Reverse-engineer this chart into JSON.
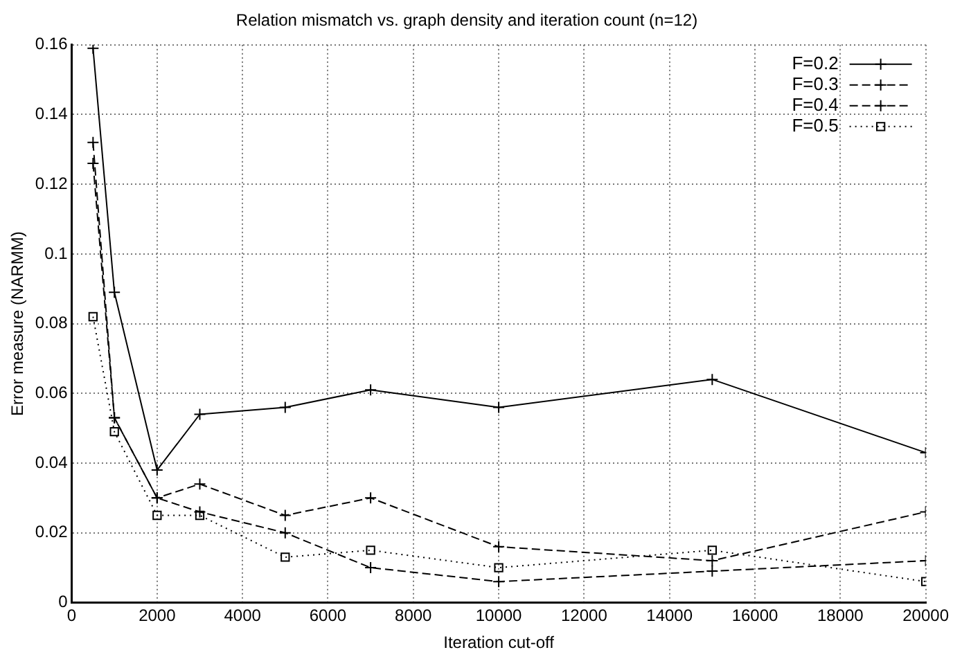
{
  "chart_data": {
    "type": "line",
    "title": "Relation mismatch vs. graph density and iteration count (n=12)",
    "xlabel": "Iteration cut-off",
    "ylabel": "Error measure (NARMM)",
    "x": [
      500,
      1000,
      2000,
      3000,
      5000,
      7000,
      10000,
      15000,
      20000
    ],
    "series": [
      {
        "name": "F=0.2",
        "color": "#000000",
        "marker": "cross",
        "line_style": "solid",
        "values": [
          0.159,
          0.089,
          0.038,
          0.054,
          0.056,
          0.061,
          0.056,
          0.064,
          0.043
        ]
      },
      {
        "name": "F=0.3",
        "color": "#000000",
        "marker": "cross",
        "line_style": "dashed",
        "values": [
          0.132,
          0.053,
          0.03,
          0.034,
          0.025,
          0.03,
          0.016,
          0.012,
          0.026
        ]
      },
      {
        "name": "F=0.4",
        "color": "#000000",
        "marker": "cross",
        "line_style": "dashed",
        "values": [
          0.126,
          0.053,
          0.03,
          0.026,
          0.02,
          0.01,
          0.006,
          0.009,
          0.012
        ]
      },
      {
        "name": "F=0.5",
        "color": "#000000",
        "marker": "square",
        "line_style": "dotted",
        "values": [
          0.082,
          0.049,
          0.025,
          0.025,
          0.013,
          0.015,
          0.01,
          0.015,
          0.006
        ]
      }
    ],
    "xlim": [
      0,
      20000
    ],
    "xticks": [
      0,
      2000,
      4000,
      6000,
      8000,
      10000,
      12000,
      14000,
      16000,
      18000,
      20000
    ],
    "ylim": [
      0,
      0.16
    ],
    "yticks": [
      0,
      0.02,
      0.04,
      0.06,
      0.08,
      0.1,
      0.12,
      0.14,
      0.16
    ],
    "grid": true,
    "legend": "top right"
  }
}
